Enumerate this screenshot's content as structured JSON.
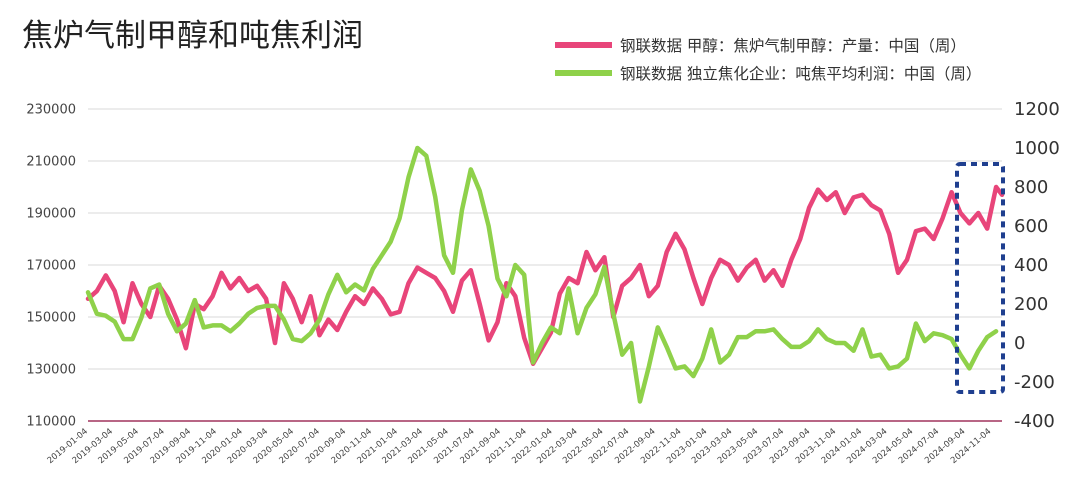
{
  "chart_data": {
    "type": "line",
    "title": "焦炉气制甲醇和吨焦利润",
    "legend_position": "top-right",
    "grid": "horizontal",
    "left_axis": {
      "ylim": [
        110000,
        230000
      ],
      "ticks": [
        "230000",
        "210000",
        "190000",
        "170000",
        "150000",
        "130000",
        "110000"
      ]
    },
    "right_axis": {
      "ylim": [
        -400,
        1200
      ],
      "ticks": [
        "1200",
        "1000",
        "800",
        "600",
        "400",
        "200",
        "0",
        "-200",
        "-400"
      ]
    },
    "x_labels": [
      "2019-01-04",
      "2019-03-04",
      "2019-05-04",
      "2019-07-04",
      "2019-09-04",
      "2019-11-04",
      "2020-01-04",
      "2020-03-04",
      "2020-05-04",
      "2020-07-04",
      "2020-09-04",
      "2020-11-04",
      "2021-01-04",
      "2021-03-04",
      "2021-05-04",
      "2021-07-04",
      "2021-09-04",
      "2021-11-04",
      "2022-01-04",
      "2022-03-04",
      "2022-05-04",
      "2022-07-04",
      "2022-09-04",
      "2022-11-04",
      "2023-01-04",
      "2023-03-04",
      "2023-05-04",
      "2023-07-04",
      "2023-09-04",
      "2023-11-04",
      "2024-01-04",
      "2024-03-04",
      "2024-05-04",
      "2024-07-04",
      "2024-09-04",
      "2024-11-04"
    ],
    "series": [
      {
        "name": "钢联数据  甲醇：焦炉气制甲醇：产量：中国（周）",
        "axis": "left",
        "color": "#e8457a",
        "points": [
          [
            "2019-01-04",
            157000
          ],
          [
            "2019-01-25",
            160000
          ],
          [
            "2019-02-15",
            166000
          ],
          [
            "2019-03-08",
            160000
          ],
          [
            "2019-03-29",
            148000
          ],
          [
            "2019-04-19",
            163000
          ],
          [
            "2019-05-10",
            155000
          ],
          [
            "2019-05-31",
            150000
          ],
          [
            "2019-06-21",
            162000
          ],
          [
            "2019-07-12",
            157000
          ],
          [
            "2019-08-02",
            149000
          ],
          [
            "2019-08-23",
            138000
          ],
          [
            "2019-09-13",
            155000
          ],
          [
            "2019-10-04",
            153000
          ],
          [
            "2019-10-25",
            158000
          ],
          [
            "2019-11-15",
            167000
          ],
          [
            "2019-12-06",
            161000
          ],
          [
            "2019-12-27",
            165000
          ],
          [
            "2020-01-17",
            160000
          ],
          [
            "2020-02-07",
            162000
          ],
          [
            "2020-02-28",
            157000
          ],
          [
            "2020-03-20",
            140000
          ],
          [
            "2020-04-10",
            163000
          ],
          [
            "2020-05-01",
            157000
          ],
          [
            "2020-05-22",
            148000
          ],
          [
            "2020-06-12",
            158000
          ],
          [
            "2020-07-03",
            143000
          ],
          [
            "2020-07-24",
            149000
          ],
          [
            "2020-08-14",
            145000
          ],
          [
            "2020-09-04",
            152000
          ],
          [
            "2020-09-25",
            158000
          ],
          [
            "2020-10-16",
            155000
          ],
          [
            "2020-11-06",
            161000
          ],
          [
            "2020-11-27",
            157000
          ],
          [
            "2020-12-18",
            151000
          ],
          [
            "2021-01-08",
            152000
          ],
          [
            "2021-01-29",
            163000
          ],
          [
            "2021-02-19",
            169000
          ],
          [
            "2021-03-12",
            167000
          ],
          [
            "2021-04-02",
            165000
          ],
          [
            "2021-04-23",
            160000
          ],
          [
            "2021-05-14",
            152000
          ],
          [
            "2021-06-04",
            164000
          ],
          [
            "2021-06-25",
            168000
          ],
          [
            "2021-07-16",
            155000
          ],
          [
            "2021-08-06",
            141000
          ],
          [
            "2021-08-27",
            148000
          ],
          [
            "2021-09-17",
            163000
          ],
          [
            "2021-10-08",
            158000
          ],
          [
            "2021-10-29",
            142000
          ],
          [
            "2021-11-19",
            132000
          ],
          [
            "2021-12-10",
            138000
          ],
          [
            "2021-12-31",
            144000
          ],
          [
            "2022-01-21",
            159000
          ],
          [
            "2022-02-11",
            165000
          ],
          [
            "2022-03-04",
            163000
          ],
          [
            "2022-03-25",
            175000
          ],
          [
            "2022-04-15",
            168000
          ],
          [
            "2022-05-06",
            173000
          ],
          [
            "2022-05-27",
            150000
          ],
          [
            "2022-06-17",
            162000
          ],
          [
            "2022-07-08",
            165000
          ],
          [
            "2022-07-29",
            170000
          ],
          [
            "2022-08-19",
            158000
          ],
          [
            "2022-09-09",
            162000
          ],
          [
            "2022-09-30",
            175000
          ],
          [
            "2022-10-21",
            182000
          ],
          [
            "2022-11-11",
            176000
          ],
          [
            "2022-12-02",
            165000
          ],
          [
            "2022-12-23",
            155000
          ],
          [
            "2023-01-13",
            165000
          ],
          [
            "2023-02-03",
            172000
          ],
          [
            "2023-02-24",
            170000
          ],
          [
            "2023-03-17",
            164000
          ],
          [
            "2023-04-07",
            169000
          ],
          [
            "2023-04-28",
            172000
          ],
          [
            "2023-05-19",
            164000
          ],
          [
            "2023-06-09",
            168000
          ],
          [
            "2023-06-30",
            162000
          ],
          [
            "2023-07-21",
            172000
          ],
          [
            "2023-08-11",
            180000
          ],
          [
            "2023-09-01",
            192000
          ],
          [
            "2023-09-22",
            199000
          ],
          [
            "2023-10-13",
            195000
          ],
          [
            "2023-11-03",
            198000
          ],
          [
            "2023-11-24",
            190000
          ],
          [
            "2023-12-15",
            196000
          ],
          [
            "2024-01-05",
            197000
          ],
          [
            "2024-01-26",
            193000
          ],
          [
            "2024-02-16",
            191000
          ],
          [
            "2024-03-08",
            182000
          ],
          [
            "2024-03-29",
            167000
          ],
          [
            "2024-04-19",
            172000
          ],
          [
            "2024-05-10",
            183000
          ],
          [
            "2024-05-31",
            184000
          ],
          [
            "2024-06-21",
            180000
          ],
          [
            "2024-07-12",
            188000
          ],
          [
            "2024-08-02",
            198000
          ],
          [
            "2024-08-23",
            190000
          ],
          [
            "2024-09-13",
            186000
          ],
          [
            "2024-10-04",
            190000
          ],
          [
            "2024-10-25",
            184000
          ],
          [
            "2024-11-15",
            200000
          ],
          [
            "2024-11-29",
            197000
          ]
        ]
      },
      {
        "name": "钢联数据  独立焦化企业：吨焦平均利润：中国（周）",
        "axis": "right",
        "color": "#8fd14a",
        "points": [
          [
            "2019-01-04",
            260
          ],
          [
            "2019-01-25",
            150
          ],
          [
            "2019-02-15",
            140
          ],
          [
            "2019-03-08",
            110
          ],
          [
            "2019-03-29",
            20
          ],
          [
            "2019-04-19",
            20
          ],
          [
            "2019-05-10",
            130
          ],
          [
            "2019-05-31",
            280
          ],
          [
            "2019-06-21",
            300
          ],
          [
            "2019-07-12",
            150
          ],
          [
            "2019-08-02",
            60
          ],
          [
            "2019-08-23",
            100
          ],
          [
            "2019-09-13",
            220
          ],
          [
            "2019-10-04",
            80
          ],
          [
            "2019-10-25",
            90
          ],
          [
            "2019-11-15",
            90
          ],
          [
            "2019-12-06",
            60
          ],
          [
            "2019-12-27",
            100
          ],
          [
            "2020-01-17",
            150
          ],
          [
            "2020-02-07",
            180
          ],
          [
            "2020-02-28",
            190
          ],
          [
            "2020-03-20",
            190
          ],
          [
            "2020-04-10",
            120
          ],
          [
            "2020-05-01",
            20
          ],
          [
            "2020-05-22",
            10
          ],
          [
            "2020-06-12",
            50
          ],
          [
            "2020-07-03",
            120
          ],
          [
            "2020-07-24",
            250
          ],
          [
            "2020-08-14",
            350
          ],
          [
            "2020-09-04",
            260
          ],
          [
            "2020-09-25",
            300
          ],
          [
            "2020-10-16",
            270
          ],
          [
            "2020-11-06",
            380
          ],
          [
            "2020-11-27",
            450
          ],
          [
            "2020-12-18",
            520
          ],
          [
            "2021-01-08",
            640
          ],
          [
            "2021-01-29",
            850
          ],
          [
            "2021-02-19",
            1000
          ],
          [
            "2021-03-12",
            960
          ],
          [
            "2021-04-02",
            750
          ],
          [
            "2021-04-23",
            450
          ],
          [
            "2021-05-14",
            360
          ],
          [
            "2021-06-04",
            680
          ],
          [
            "2021-06-25",
            890
          ],
          [
            "2021-07-16",
            780
          ],
          [
            "2021-08-06",
            600
          ],
          [
            "2021-08-27",
            330
          ],
          [
            "2021-09-17",
            240
          ],
          [
            "2021-10-08",
            400
          ],
          [
            "2021-10-29",
            350
          ],
          [
            "2021-11-19",
            -100
          ],
          [
            "2021-12-10",
            0
          ],
          [
            "2021-12-31",
            80
          ],
          [
            "2022-01-21",
            50
          ],
          [
            "2022-02-11",
            280
          ],
          [
            "2022-03-04",
            50
          ],
          [
            "2022-03-25",
            180
          ],
          [
            "2022-04-15",
            250
          ],
          [
            "2022-05-06",
            390
          ],
          [
            "2022-05-27",
            150
          ],
          [
            "2022-06-17",
            -60
          ],
          [
            "2022-07-08",
            0
          ],
          [
            "2022-07-29",
            -300
          ],
          [
            "2022-08-19",
            -120
          ],
          [
            "2022-09-09",
            80
          ],
          [
            "2022-09-30",
            -20
          ],
          [
            "2022-10-21",
            -130
          ],
          [
            "2022-11-11",
            -120
          ],
          [
            "2022-12-02",
            -170
          ],
          [
            "2022-12-23",
            -80
          ],
          [
            "2023-01-13",
            70
          ],
          [
            "2023-02-03",
            -100
          ],
          [
            "2023-02-24",
            -60
          ],
          [
            "2023-03-17",
            30
          ],
          [
            "2023-04-07",
            30
          ],
          [
            "2023-04-28",
            60
          ],
          [
            "2023-05-19",
            60
          ],
          [
            "2023-06-09",
            70
          ],
          [
            "2023-06-30",
            20
          ],
          [
            "2023-07-21",
            -20
          ],
          [
            "2023-08-11",
            -20
          ],
          [
            "2023-09-01",
            10
          ],
          [
            "2023-09-22",
            70
          ],
          [
            "2023-10-13",
            20
          ],
          [
            "2023-11-03",
            0
          ],
          [
            "2023-11-24",
            0
          ],
          [
            "2023-12-15",
            -40
          ],
          [
            "2024-01-05",
            70
          ],
          [
            "2024-01-26",
            -70
          ],
          [
            "2024-02-16",
            -60
          ],
          [
            "2024-03-08",
            -130
          ],
          [
            "2024-03-29",
            -120
          ],
          [
            "2024-04-19",
            -80
          ],
          [
            "2024-05-10",
            100
          ],
          [
            "2024-05-31",
            10
          ],
          [
            "2024-06-21",
            50
          ],
          [
            "2024-07-12",
            40
          ],
          [
            "2024-08-02",
            20
          ],
          [
            "2024-08-23",
            -60
          ],
          [
            "2024-09-13",
            -130
          ],
          [
            "2024-10-04",
            -40
          ],
          [
            "2024-10-25",
            30
          ],
          [
            "2024-11-15",
            60
          ]
        ]
      }
    ]
  }
}
